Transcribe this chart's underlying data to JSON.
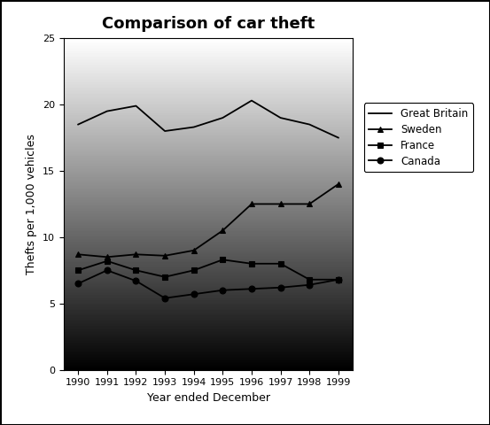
{
  "title": "Comparison of car theft",
  "xlabel": "Year ended December",
  "ylabel": "Thefts per 1,000 vehicles",
  "years": [
    1990,
    1991,
    1992,
    1993,
    1994,
    1995,
    1996,
    1997,
    1998,
    1999
  ],
  "series": {
    "Great Britain": {
      "values": [
        18.5,
        19.5,
        19.9,
        18.0,
        18.3,
        19.0,
        20.3,
        19.0,
        18.5,
        17.5
      ],
      "color": "#000000",
      "linestyle": "-",
      "marker": null,
      "linewidth": 1.3
    },
    "Sweden": {
      "values": [
        8.7,
        8.5,
        8.7,
        8.6,
        9.0,
        10.5,
        12.5,
        12.5,
        12.5,
        14.0
      ],
      "color": "#000000",
      "linestyle": "-",
      "marker": "^",
      "linewidth": 1.3
    },
    "France": {
      "values": [
        7.5,
        8.2,
        7.5,
        7.0,
        7.5,
        8.3,
        8.0,
        8.0,
        6.8,
        6.8
      ],
      "color": "#000000",
      "linestyle": "-",
      "marker": "s",
      "linewidth": 1.3
    },
    "Canada": {
      "values": [
        6.5,
        7.5,
        6.7,
        5.4,
        5.7,
        6.0,
        6.1,
        6.2,
        6.4,
        6.8
      ],
      "color": "#000000",
      "linestyle": "-",
      "marker": "o",
      "linewidth": 1.3
    }
  },
  "ylim": [
    0,
    25
  ],
  "yticks": [
    0,
    5,
    10,
    15,
    20,
    25
  ],
  "fig_bg_color": "#ffffff",
  "legend_order": [
    "Great Britain",
    "Sweden",
    "France",
    "Canada"
  ],
  "title_fontsize": 13,
  "axis_label_fontsize": 9,
  "tick_fontsize": 8
}
